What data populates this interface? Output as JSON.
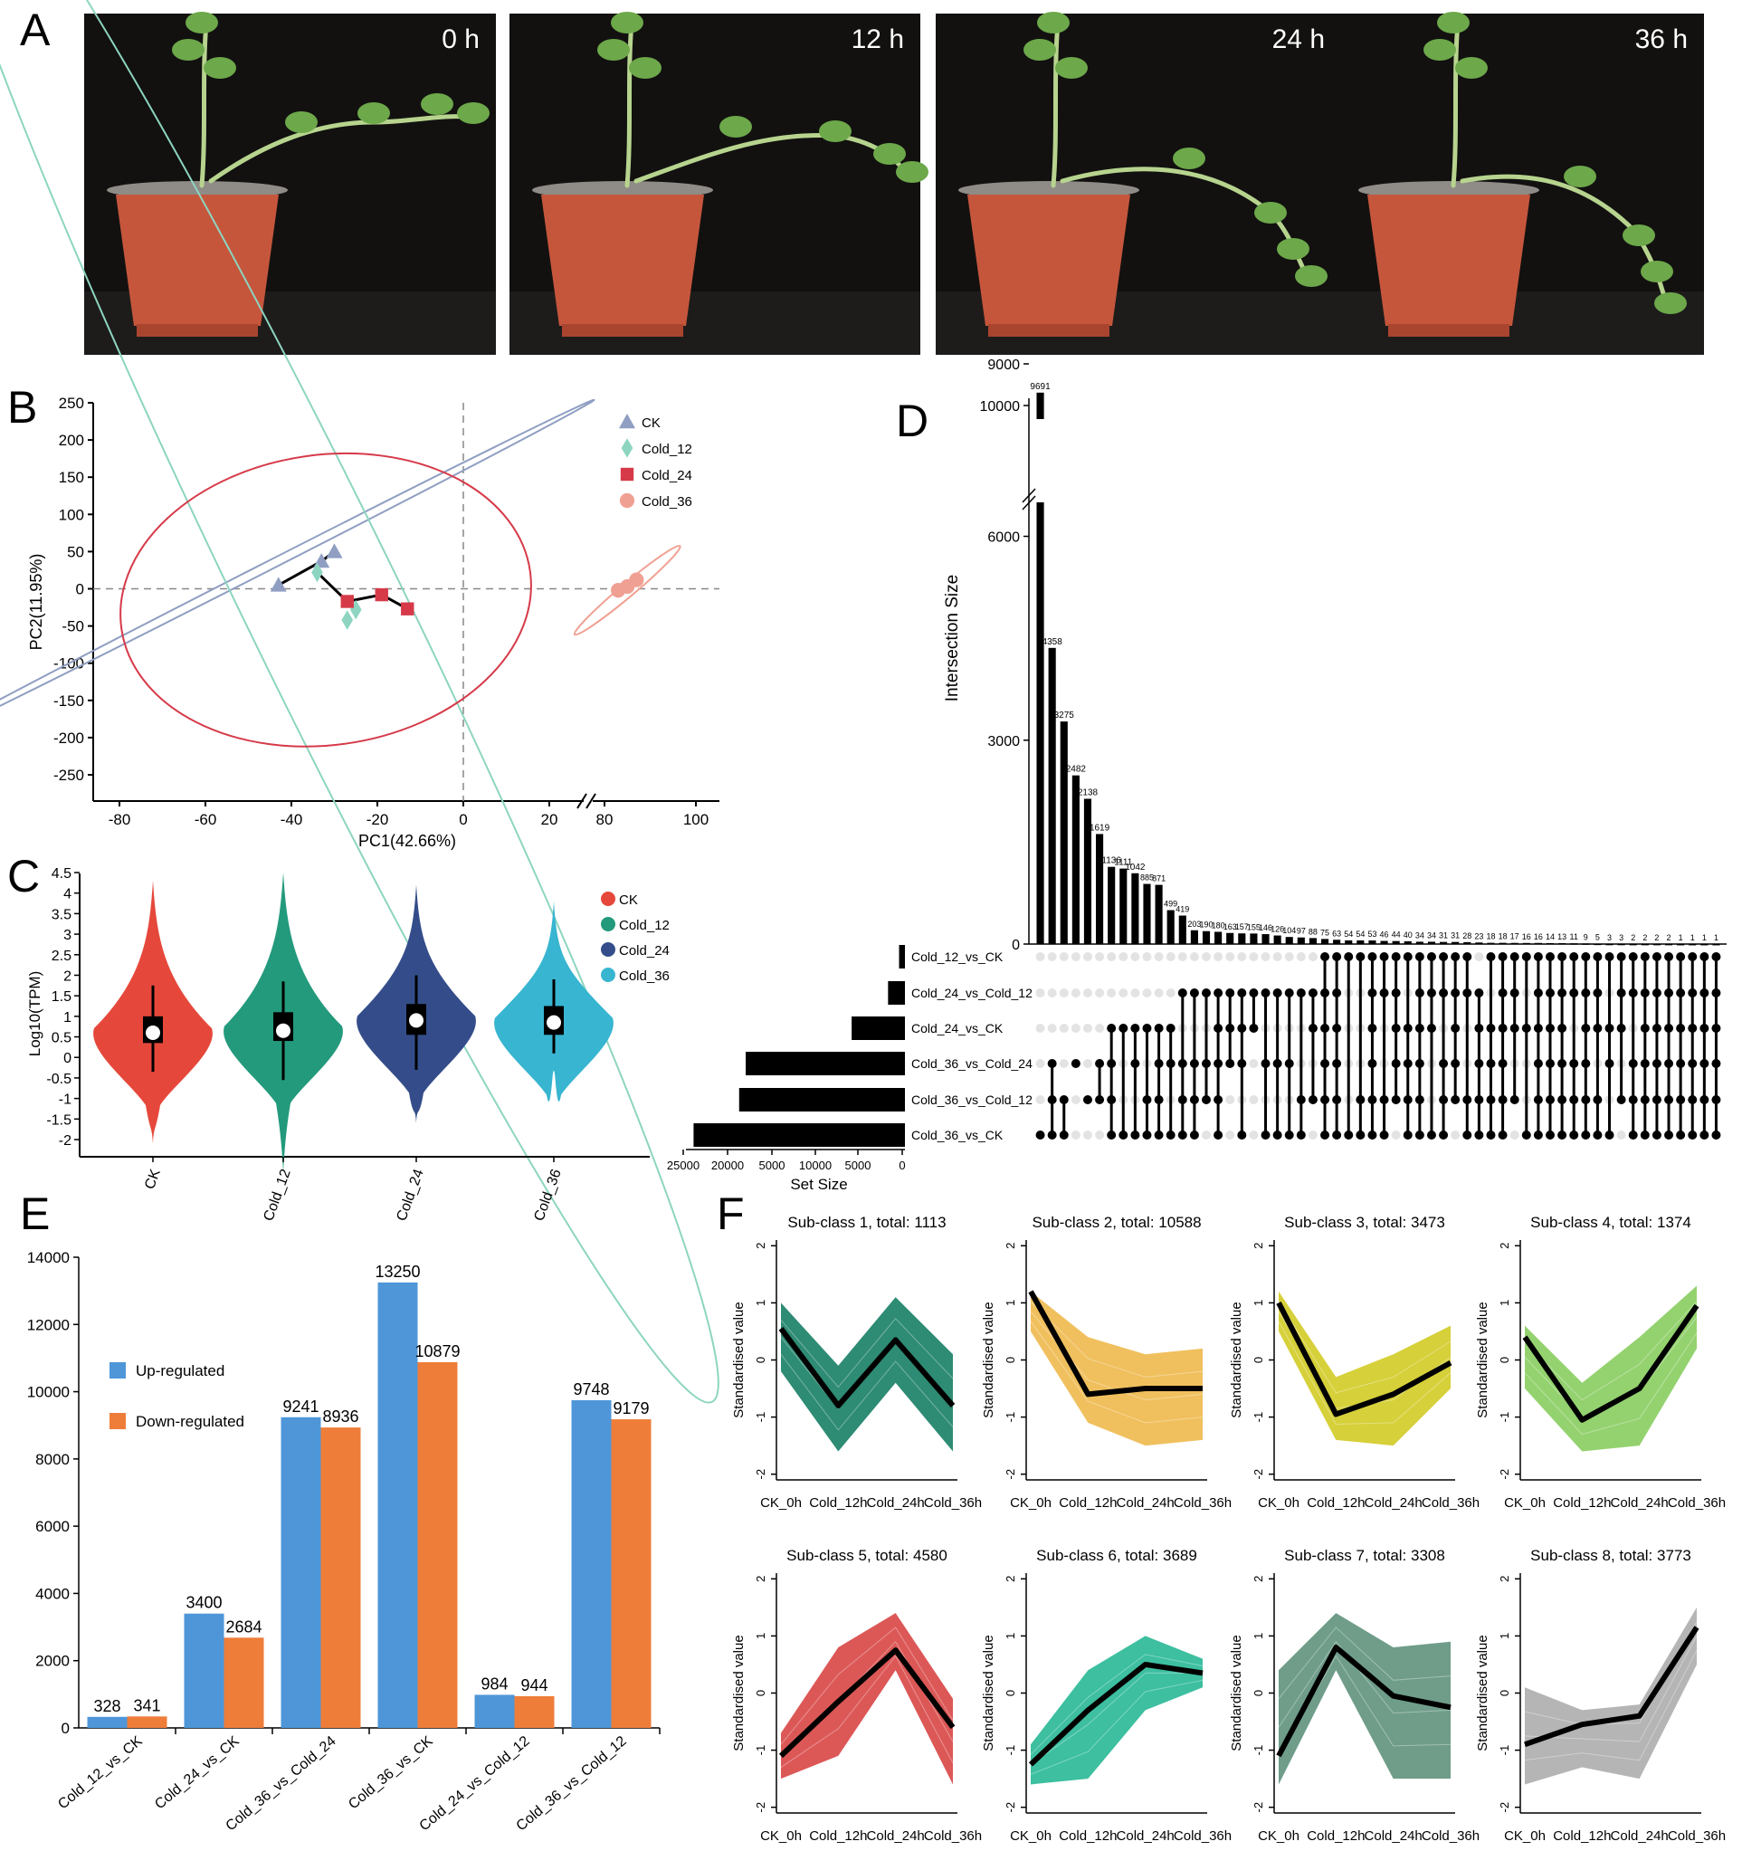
{
  "panels": {
    "A": "A",
    "B": "B",
    "C": "C",
    "D": "D",
    "E": "E",
    "F": "F"
  },
  "panelA": {
    "times": [
      "0 h",
      "12 h",
      "24 h",
      "36 h"
    ],
    "colors": {
      "bg": "#121110",
      "pot": "#c5563c",
      "potRim": "#8f8b86",
      "plant": "#6da84a"
    }
  },
  "panelB": {
    "xlabel": "PC1(42.66%)",
    "ylabel": "PC2(11.95%)",
    "xticks": [
      "-80",
      "-60",
      "-40",
      "-20",
      "0",
      "20",
      "80",
      "100"
    ],
    "yticks": [
      "250",
      "200",
      "150",
      "100",
      "50",
      "0",
      "-50",
      "-100",
      "-150",
      "-200",
      "-250"
    ],
    "legend": [
      {
        "label": "CK",
        "color": "#8f9ec2",
        "shape": "triangle"
      },
      {
        "label": "Cold_12",
        "color": "#8dd5c0",
        "shape": "diamond"
      },
      {
        "label": "Cold_24",
        "color": "#d63a49",
        "shape": "square"
      },
      {
        "label": "Cold_36",
        "color": "#f0a092",
        "shape": "circle"
      }
    ],
    "points": {
      "CK": [
        [
          -43,
          5
        ],
        [
          -33,
          37
        ],
        [
          -30,
          50
        ]
      ],
      "Cold_12": [
        [
          -34,
          22
        ],
        [
          -27,
          -42
        ],
        [
          -25,
          -28
        ]
      ],
      "Cold_24": [
        [
          -27,
          -17
        ],
        [
          -19,
          -8
        ],
        [
          -13,
          -27
        ]
      ],
      "Cold_36": [
        [
          83,
          -2
        ],
        [
          85,
          3
        ],
        [
          87,
          12
        ]
      ]
    },
    "ellipses": {
      "CK": {
        "cx": -48,
        "cy": 23,
        "rx": 88,
        "ry": 2,
        "angle": 27
      },
      "Cold_12": {
        "cx": -32,
        "cy": -28,
        "rx": 205,
        "ry": 35,
        "angle": 116
      },
      "Cold_24": {
        "cx": -32,
        "cy": -15,
        "rx": 48,
        "ry": 65,
        "angle": 8
      },
      "Cold_36": {
        "cx": 85,
        "cy": -2,
        "rx": 16,
        "ry": 3,
        "angle": 40
      }
    }
  },
  "panelC": {
    "ylabel": "Log10(TPM)",
    "yticks": [
      "4.5",
      "4",
      "3.5",
      "3",
      "2.5",
      "2",
      "1.5",
      "1",
      "0.5",
      "0",
      "-0.5",
      "-1",
      "-1.5",
      "-2"
    ],
    "groups": [
      {
        "name": "CK",
        "color": "#e5483b",
        "median": 0.6,
        "q1": 0.35,
        "q3": 1.0,
        "lo": -0.35,
        "hi": 1.75,
        "min": -2.1,
        "max": 4.3
      },
      {
        "name": "Cold_12",
        "color": "#239a7c",
        "median": 0.65,
        "q1": 0.4,
        "q3": 1.1,
        "lo": -0.55,
        "hi": 1.85,
        "min": -2.8,
        "max": 4.5
      },
      {
        "name": "Cold_24",
        "color": "#344d8a",
        "median": 0.9,
        "q1": 0.55,
        "q3": 1.3,
        "lo": -0.3,
        "hi": 2.0,
        "min": -1.6,
        "max": 4.2
      },
      {
        "name": "Cold_36",
        "color": "#38b5d0",
        "median": 0.85,
        "q1": 0.55,
        "q3": 1.25,
        "lo": 0.1,
        "hi": 1.9,
        "min": -0.4,
        "max": 3.8
      }
    ]
  },
  "panelD": {
    "ylabel": "Intersection Size",
    "xlabel": "Set Size",
    "yticks": [
      "10000",
      "9000",
      "6000",
      "3000",
      "0"
    ],
    "setAxisTicks": [
      "25000",
      "20000",
      "5000",
      "10000",
      "5000",
      "0"
    ],
    "sets": [
      {
        "name": "Cold_12_vs_CK",
        "size": 669
      },
      {
        "name": "Cold_24_vs_Cold_12",
        "size": 1928
      },
      {
        "name": "Cold_24_vs_CK",
        "size": 6084
      },
      {
        "name": "Cold_36_vs_Cold_24",
        "size": 18177
      },
      {
        "name": "Cold_36_vs_Cold_12",
        "size": 18927
      },
      {
        "name": "Cold_36_vs_CK",
        "size": 24129
      }
    ],
    "intersections": [
      {
        "value": 9691,
        "label": "9691",
        "sets": [
          5
        ]
      },
      {
        "value": 4358,
        "label": "4358",
        "sets": [
          3,
          4,
          5
        ]
      },
      {
        "value": 3275,
        "label": "3275",
        "sets": [
          4,
          5
        ]
      },
      {
        "value": 2482,
        "label": "2482",
        "sets": [
          3
        ]
      },
      {
        "value": 2138,
        "label": "2138",
        "sets": [
          4
        ]
      },
      {
        "value": 1619,
        "label": "1619",
        "sets": [
          3,
          4
        ]
      },
      {
        "value": 1136,
        "label": "1136",
        "sets": [
          2,
          3,
          4,
          5
        ]
      },
      {
        "value": 1111,
        "label": "1111",
        "sets": [
          2,
          5
        ]
      },
      {
        "value": 1042,
        "label": "1042",
        "sets": [
          2,
          3,
          5
        ]
      },
      {
        "value": 885,
        "label": "885",
        "sets": [
          2,
          4,
          5
        ]
      },
      {
        "value": 871,
        "label": "871",
        "sets": [
          2,
          3,
          4,
          5
        ]
      },
      {
        "value": 499,
        "label": "499",
        "sets": [
          2,
          3,
          5
        ]
      },
      {
        "value": 419,
        "label": "419",
        "sets": [
          1,
          3,
          4,
          5
        ]
      },
      {
        "value": 203,
        "label": "203",
        "sets": [
          1,
          3,
          4,
          5
        ]
      },
      {
        "value": 190,
        "label": "190",
        "sets": [
          1,
          3,
          4
        ]
      },
      {
        "value": 180,
        "label": "180",
        "sets": [
          1,
          2,
          3,
          4,
          5
        ]
      },
      {
        "value": 163,
        "label": "163",
        "sets": [
          1,
          2,
          3
        ]
      },
      {
        "value": 157,
        "label": "157",
        "sets": [
          1,
          2,
          3,
          5
        ]
      },
      {
        "value": 155,
        "label": "155",
        "sets": [
          1,
          2
        ]
      },
      {
        "value": 146,
        "label": "146",
        "sets": [
          1,
          3,
          5
        ]
      },
      {
        "value": 126,
        "label": "126",
        "sets": [
          1,
          3,
          5
        ]
      },
      {
        "value": 104,
        "label": "104",
        "sets": [
          1,
          3,
          5
        ]
      },
      {
        "value": 97,
        "label": "97",
        "sets": [
          1,
          4,
          5
        ]
      },
      {
        "value": 88,
        "label": "88",
        "sets": [
          1,
          2,
          4
        ]
      },
      {
        "value": 75,
        "label": "75",
        "sets": [
          0,
          1,
          2,
          3,
          4,
          5
        ]
      },
      {
        "value": 63,
        "label": "63",
        "sets": [
          0,
          1,
          2,
          3,
          4,
          5
        ]
      },
      {
        "value": 54,
        "label": "54",
        "sets": [
          0,
          5
        ]
      },
      {
        "value": 54,
        "label": "54",
        "sets": [
          0,
          4,
          5
        ]
      },
      {
        "value": 53,
        "label": "53",
        "sets": [
          0,
          1,
          2,
          3,
          4,
          5
        ]
      },
      {
        "value": 46,
        "label": "46",
        "sets": [
          0,
          1,
          4,
          5
        ]
      },
      {
        "value": 44,
        "label": "44",
        "sets": [
          0,
          1,
          2,
          3,
          4
        ]
      },
      {
        "value": 40,
        "label": "40",
        "sets": [
          0,
          2,
          3,
          4,
          5
        ]
      },
      {
        "value": 34,
        "label": "34",
        "sets": [
          0,
          1,
          2,
          3,
          4,
          5
        ]
      },
      {
        "value": 34,
        "label": "34",
        "sets": [
          0,
          1,
          2,
          5
        ]
      },
      {
        "value": 31,
        "label": "31",
        "sets": [
          0,
          1,
          3,
          4,
          5
        ]
      },
      {
        "value": 31,
        "label": "31",
        "sets": [
          0,
          1,
          2,
          3,
          4
        ]
      },
      {
        "value": 28,
        "label": "28",
        "sets": [
          0,
          1,
          4,
          5
        ]
      },
      {
        "value": 23,
        "label": "23",
        "sets": [
          1,
          2,
          3,
          4,
          5
        ]
      },
      {
        "value": 18,
        "label": "18",
        "sets": [
          0,
          2,
          3,
          4,
          5
        ]
      },
      {
        "value": 18,
        "label": "18",
        "sets": [
          0,
          1,
          2,
          3,
          4,
          5
        ]
      },
      {
        "value": 17,
        "label": "17",
        "sets": [
          0,
          1,
          2,
          4
        ]
      },
      {
        "value": 16,
        "label": "16",
        "sets": [
          0,
          2,
          5
        ]
      },
      {
        "value": 16,
        "label": "16",
        "sets": [
          0,
          1,
          2,
          3,
          4,
          5
        ]
      },
      {
        "value": 14,
        "label": "14",
        "sets": [
          0,
          1,
          2,
          3,
          4,
          5
        ]
      },
      {
        "value": 13,
        "label": "13",
        "sets": [
          0,
          1,
          2,
          3,
          4,
          5
        ]
      },
      {
        "value": 11,
        "label": "11",
        "sets": [
          0,
          1,
          3,
          4,
          5
        ]
      },
      {
        "value": 9,
        "label": "9",
        "sets": [
          0,
          1,
          2,
          3,
          4,
          5
        ]
      },
      {
        "value": 5,
        "label": "5",
        "sets": [
          0,
          1,
          2,
          4,
          5
        ]
      },
      {
        "value": 3,
        "label": "3",
        "sets": [
          0,
          2,
          3,
          5
        ]
      },
      {
        "value": 3,
        "label": "3",
        "sets": [
          0,
          1,
          2,
          4
        ]
      },
      {
        "value": 2,
        "label": "2",
        "sets": [
          0,
          1,
          3,
          4,
          5
        ]
      },
      {
        "value": 2,
        "label": "2",
        "sets": [
          0,
          1,
          2,
          3,
          4,
          5
        ]
      },
      {
        "value": 2,
        "label": "2",
        "sets": [
          0,
          1,
          2,
          3,
          4,
          5
        ]
      },
      {
        "value": 2,
        "label": "2",
        "sets": [
          0,
          1,
          2,
          3,
          4,
          5
        ]
      },
      {
        "value": 1,
        "label": "1",
        "sets": [
          0,
          1,
          2,
          3,
          4,
          5
        ]
      },
      {
        "value": 1,
        "label": "1",
        "sets": [
          0,
          1,
          2,
          3,
          4,
          5
        ]
      },
      {
        "value": 1,
        "label": "1",
        "sets": [
          0,
          1,
          2,
          3,
          4,
          5
        ]
      },
      {
        "value": 1,
        "label": "1",
        "sets": [
          0,
          1,
          2,
          3,
          4,
          5
        ]
      }
    ]
  },
  "panelE": {
    "type": "bar",
    "categories": [
      "Cold_12_vs_CK",
      "Cold_24_vs_CK",
      "Cold_36_vs_Cold_24",
      "Cold_36_vs_CK",
      "Cold_24_vs_Cold_12",
      "Cold_36_vs_Cold_12"
    ],
    "series": [
      {
        "name": "Up-regulated",
        "color": "#4e96d8",
        "values": [
          328,
          3400,
          9241,
          13250,
          984,
          9748
        ]
      },
      {
        "name": "Down-regulated",
        "color": "#ee7d3a",
        "values": [
          341,
          2684,
          8936,
          10879,
          944,
          9179
        ]
      }
    ],
    "ylim": [
      0,
      14000
    ],
    "yticks": [
      "0",
      "2000",
      "4000",
      "6000",
      "8000",
      "10000",
      "12000",
      "14000"
    ]
  },
  "panelF": {
    "ylabel": "Standardised value",
    "xlabels": [
      "CK_0h",
      "Cold_12h",
      "Cold_24h",
      "Cold_36h"
    ],
    "yticks": [
      "2",
      "1",
      "0",
      "-1",
      "-2"
    ],
    "subclasses": [
      {
        "title": "Sub-class 1, total: 1113",
        "color": "#2e8b74",
        "mean": [
          0.55,
          -0.8,
          0.35,
          -0.8
        ],
        "upper": [
          1.0,
          -0.1,
          1.1,
          0.1
        ],
        "lower": [
          -0.2,
          -1.6,
          -0.4,
          -1.6
        ]
      },
      {
        "title": "Sub-class 2, total: 10588",
        "color": "#f0c05e",
        "mean": [
          1.2,
          -0.6,
          -0.5,
          -0.5
        ],
        "upper": [
          1.2,
          0.4,
          0.1,
          0.2
        ],
        "lower": [
          0.5,
          -1.1,
          -1.5,
          -1.4
        ]
      },
      {
        "title": "Sub-class 3, total: 3473",
        "color": "#d6d03a",
        "mean": [
          1.0,
          -0.95,
          -0.6,
          -0.05
        ],
        "upper": [
          1.2,
          -0.3,
          0.1,
          0.6
        ],
        "lower": [
          0.5,
          -1.4,
          -1.5,
          -0.5
        ]
      },
      {
        "title": "Sub-class 4, total: 1374",
        "color": "#94d26f",
        "mean": [
          0.4,
          -1.05,
          -0.5,
          0.95
        ],
        "upper": [
          0.6,
          -0.4,
          0.4,
          1.3
        ],
        "lower": [
          -0.5,
          -1.6,
          -1.5,
          0.2
        ]
      },
      {
        "title": "Sub-class 5, total: 4580",
        "color": "#dc5857",
        "mean": [
          -1.1,
          -0.15,
          0.75,
          -0.6
        ],
        "upper": [
          -0.7,
          0.8,
          1.4,
          -0.1
        ],
        "lower": [
          -1.5,
          -1.1,
          0.4,
          -1.6
        ]
      },
      {
        "title": "Sub-class 6, total: 3689",
        "color": "#3dbfa0",
        "mean": [
          -1.25,
          -0.3,
          0.5,
          0.35
        ],
        "upper": [
          -0.9,
          0.4,
          1.0,
          0.6
        ],
        "lower": [
          -1.6,
          -1.5,
          -0.3,
          0.1
        ]
      },
      {
        "title": "Sub-class 7, total: 3308",
        "color": "#6f9d8a",
        "mean": [
          -1.1,
          0.8,
          -0.05,
          -0.25
        ],
        "upper": [
          0.4,
          1.4,
          0.8,
          0.9
        ],
        "lower": [
          -1.6,
          0.4,
          -1.5,
          -1.5
        ]
      },
      {
        "title": "Sub-class 8, total: 3773",
        "color": "#b5b5b5",
        "mean": [
          -0.9,
          -0.55,
          -0.4,
          1.15
        ],
        "upper": [
          0.1,
          -0.3,
          -0.2,
          1.5
        ],
        "lower": [
          -1.6,
          -1.3,
          -1.5,
          0.5
        ]
      }
    ]
  }
}
